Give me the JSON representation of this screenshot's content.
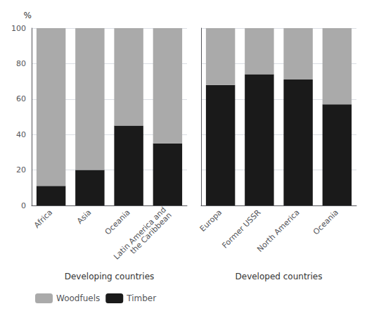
{
  "chart_data": [
    {
      "type": "bar",
      "categories": [
        "Africa",
        "Asia",
        "Oceania",
        "Latin America and\nthe Caribbean"
      ],
      "series": [
        {
          "name": "Woodfuels",
          "color": "#aaaaaa",
          "values": [
            89,
            80,
            55,
            65
          ]
        },
        {
          "name": "Timber",
          "color": "#1a1a1a",
          "values": [
            11,
            20,
            45,
            35
          ]
        }
      ],
      "stacked": true,
      "xlabel": "Developing countries",
      "ylabel": "%",
      "ylim": [
        0,
        100
      ],
      "yticks": [
        0,
        20,
        40,
        60,
        80,
        100
      ],
      "grid": true,
      "legend": "lower left"
    },
    {
      "type": "bar",
      "categories": [
        "Europa",
        "Former USSR",
        "North America",
        "Oceania"
      ],
      "series": [
        {
          "name": "Woodfuels",
          "color": "#aaaaaa",
          "values": [
            32,
            26,
            29,
            43
          ]
        },
        {
          "name": "Timber",
          "color": "#1a1a1a",
          "values": [
            68,
            74,
            71,
            57
          ]
        }
      ],
      "stacked": true,
      "xlabel": "Developed countries",
      "ylim": [
        0,
        100
      ],
      "yticks": [
        0,
        20,
        40,
        60,
        80,
        100
      ],
      "grid": true,
      "tick_labels": "x"
    }
  ]
}
